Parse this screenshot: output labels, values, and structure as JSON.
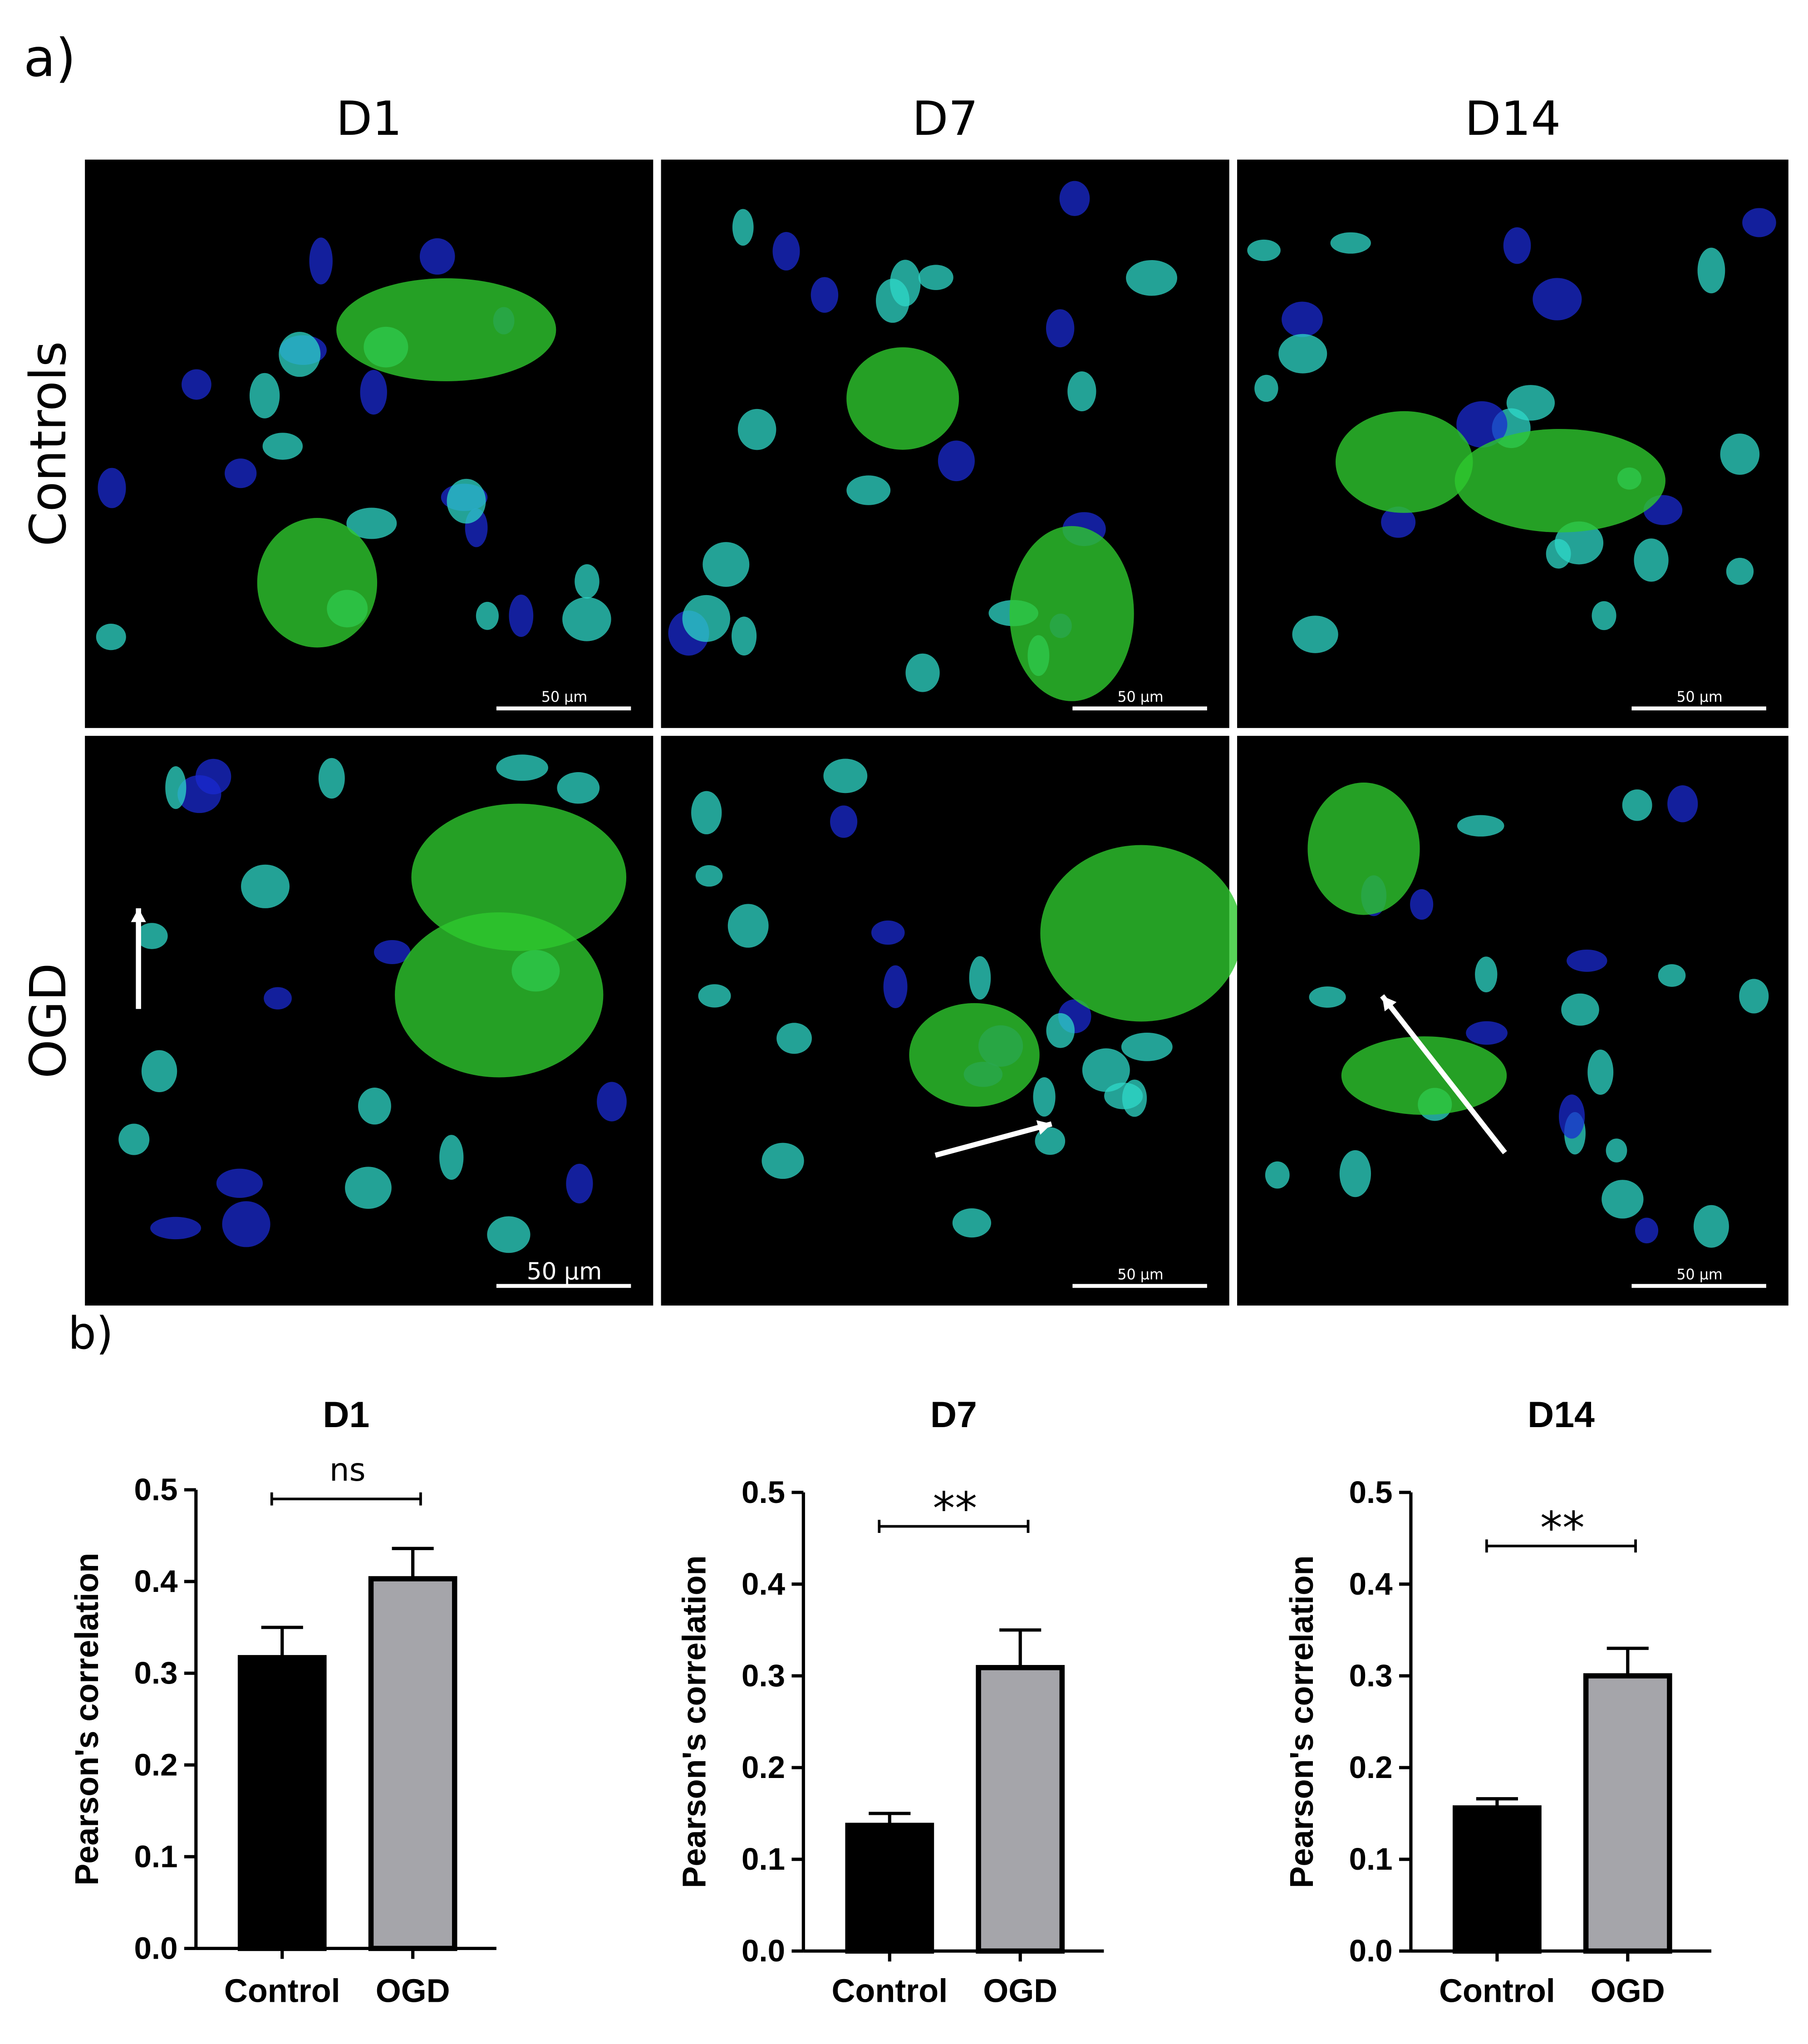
{
  "figure": {
    "panel_a_label": "a)",
    "panel_b_label": "b)",
    "columns": [
      "D1",
      "D7",
      "D14"
    ],
    "rows": [
      "Controls",
      "OGD"
    ],
    "scale_bars": [
      "50 µm",
      "50 µm",
      "50 µm",
      "50 µm",
      "50 µm",
      "50 µm"
    ]
  },
  "chart_data": [
    {
      "type": "bar",
      "title": "D1",
      "y_label": "Pearson's correlation",
      "categories": [
        "Control",
        "OGD"
      ],
      "values": [
        0.317,
        0.403
      ],
      "errors": [
        0.033,
        0.033
      ],
      "colors": [
        "#000000",
        "#a5a5aa"
      ],
      "ylim": [
        0,
        0.5
      ],
      "yticks": [
        {
          "value": 0,
          "label": "0.0"
        },
        0.1,
        0.2,
        0.3,
        0.4,
        0.5
      ],
      "significance": "ns"
    },
    {
      "type": "bar",
      "title": "D7",
      "y_label": "Pearson's correlation",
      "categories": [
        "Control",
        "OGD"
      ],
      "values": [
        0.137,
        0.309
      ],
      "errors": [
        0.013,
        0.041
      ],
      "colors": [
        "#000000",
        "#a5a5aa"
      ],
      "ylim": [
        0,
        0.5
      ],
      "yticks": [
        {
          "value": 0,
          "label": "0.0"
        },
        0.1,
        0.2,
        0.3,
        0.4,
        0.5
      ],
      "significance": "**"
    },
    {
      "type": "bar",
      "title": "D14",
      "y_label": "Pearson's correlation",
      "categories": [
        "Control",
        "OGD"
      ],
      "values": [
        0.156,
        0.3
      ],
      "errors": [
        0.01,
        0.03
      ],
      "colors": [
        "#000000",
        "#a5a5aa"
      ],
      "ylim": [
        0,
        0.5
      ],
      "yticks": [
        {
          "value": 0,
          "label": "0.0"
        },
        0.1,
        0.2,
        0.3,
        0.4,
        0.5
      ],
      "significance": "**"
    }
  ]
}
